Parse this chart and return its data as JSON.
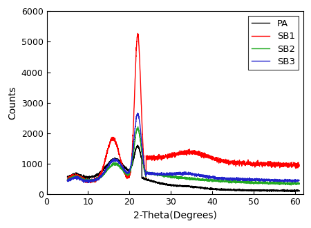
{
  "title": "",
  "xlabel": "2-Theta(Degrees)",
  "ylabel": "Counts",
  "xlim": [
    0,
    62
  ],
  "ylim": [
    0,
    6000
  ],
  "xticks": [
    0,
    10,
    20,
    30,
    40,
    50,
    60
  ],
  "yticks": [
    0,
    1000,
    2000,
    3000,
    4000,
    5000,
    6000
  ],
  "series": {
    "PA": {
      "color": "#000000",
      "lw": 1.0
    },
    "SB1": {
      "color": "#ff0000",
      "lw": 1.0
    },
    "SB2": {
      "color": "#22aa22",
      "lw": 1.0
    },
    "SB3": {
      "color": "#2222cc",
      "lw": 1.0
    }
  },
  "legend_loc": "upper right",
  "figsize": [
    4.5,
    3.3
  ],
  "dpi": 100
}
